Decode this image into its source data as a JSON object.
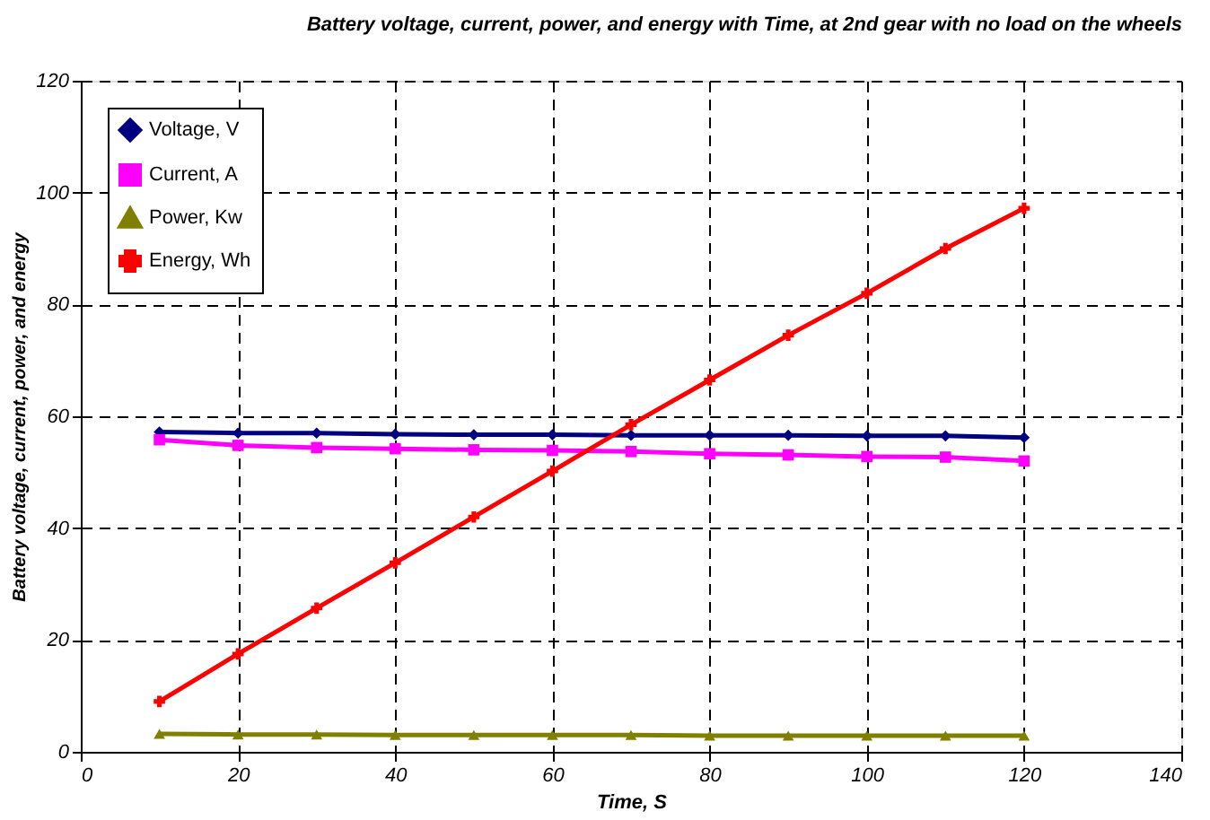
{
  "chart_data": {
    "type": "line",
    "title": "Battery voltage, current, power, and energy with Time, at 2nd gear with no load on the wheels",
    "xlabel": "Time, S",
    "ylabel": "Battery voltage, current, power, and energy",
    "x": [
      10,
      20,
      30,
      40,
      50,
      60,
      70,
      80,
      90,
      100,
      110,
      120
    ],
    "series": [
      {
        "name": "Voltage, V",
        "color": "#000080",
        "marker": "diamond",
        "values": [
          57.2,
          57.0,
          57.0,
          56.8,
          56.7,
          56.7,
          56.6,
          56.6,
          56.6,
          56.5,
          56.5,
          56.2
        ]
      },
      {
        "name": "Current, A",
        "color": "#ff00ff",
        "marker": "square",
        "values": [
          55.8,
          54.8,
          54.4,
          54.2,
          54.0,
          53.9,
          53.7,
          53.3,
          53.1,
          52.8,
          52.7,
          52.0
        ]
      },
      {
        "name": "Power, Kw",
        "color": "#808000",
        "marker": "triangle",
        "values": [
          3.2,
          3.1,
          3.1,
          3.0,
          3.0,
          3.0,
          3.0,
          2.9,
          2.9,
          2.9,
          2.9,
          2.9
        ]
      },
      {
        "name": "Energy, Wh",
        "color": "#ff0000",
        "marker": "cross",
        "values": [
          9.0,
          17.5,
          25.7,
          33.8,
          42.0,
          50.2,
          58.5,
          66.5,
          74.5,
          82.0,
          90.0,
          97.2
        ]
      }
    ],
    "xlim": [
      0,
      140
    ],
    "xticks": [
      0,
      20,
      40,
      60,
      80,
      100,
      120,
      140
    ],
    "ylim": [
      0,
      120
    ],
    "yticks": [
      0,
      20,
      40,
      60,
      80,
      100,
      120
    ],
    "grid": true,
    "legend": "top left",
    "line_style": "solid"
  }
}
